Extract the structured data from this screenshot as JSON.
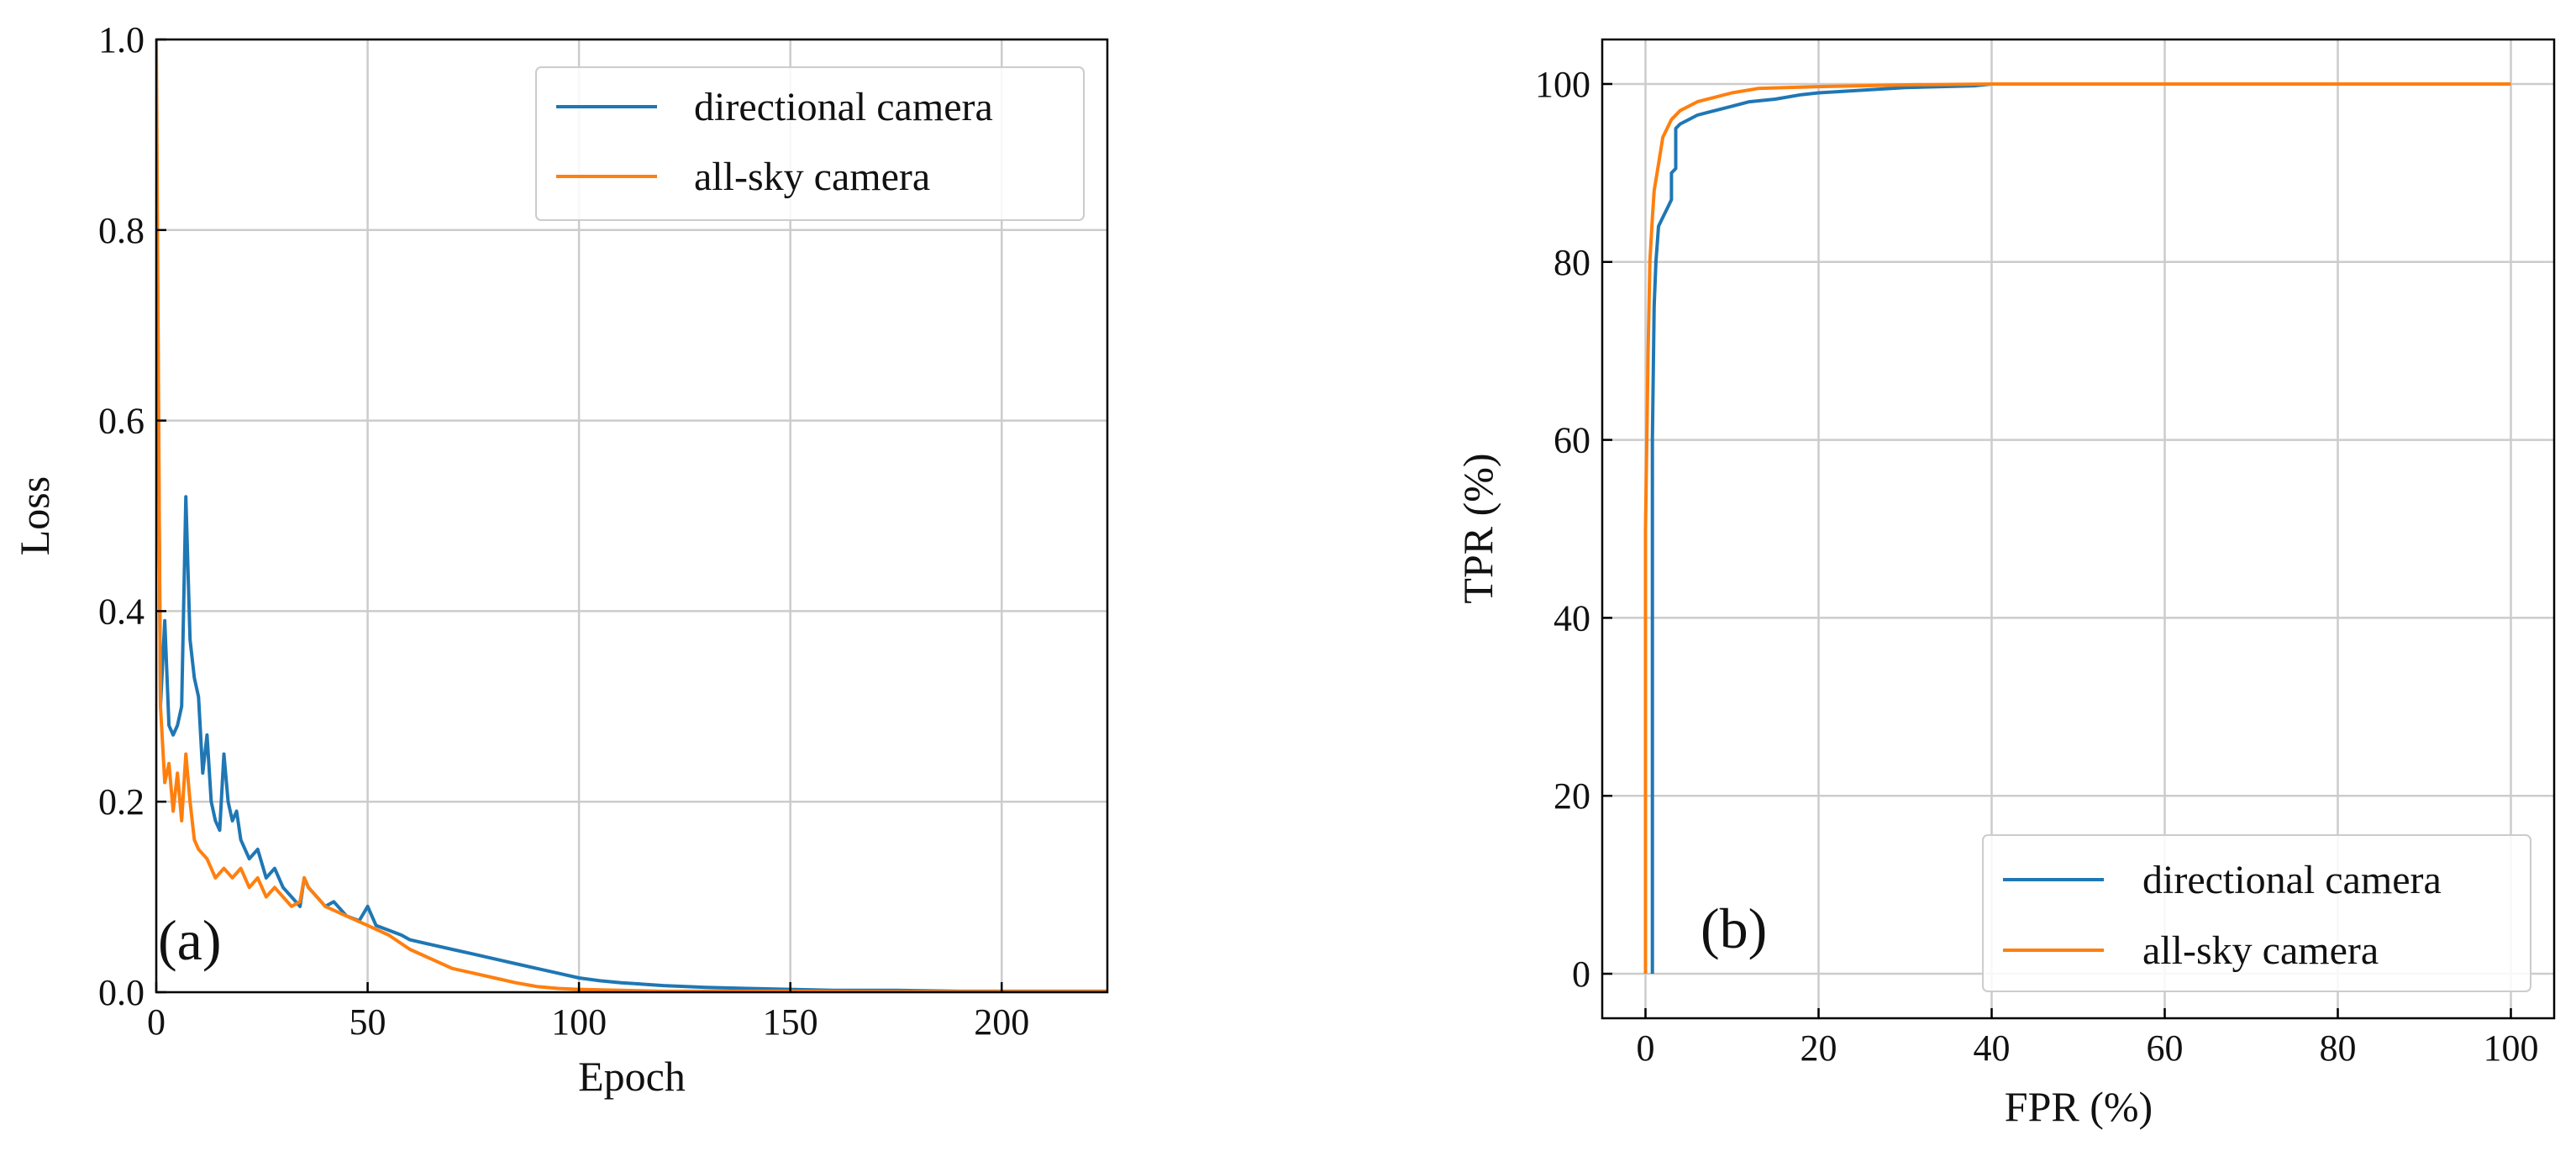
{
  "figure": {
    "colors": {
      "directional": "#1f77b4",
      "allsky": "#ff7f0e",
      "grid": "#cccccc",
      "axis": "#000000"
    }
  },
  "chart_data": [
    {
      "type": "line",
      "panel_label": "(a)",
      "xlabel": "Epoch",
      "ylabel": "Loss",
      "xlim": [
        0,
        225
      ],
      "ylim": [
        0,
        1.0
      ],
      "xticks": [
        0,
        50,
        100,
        150,
        200
      ],
      "xtick_labels": [
        "0",
        "50",
        "100",
        "150",
        "200"
      ],
      "yticks": [
        0,
        0.2,
        0.4,
        0.6,
        0.8,
        1.0
      ],
      "ytick_labels": [
        "0.0",
        "0.2",
        "0.4",
        "0.6",
        "0.8",
        "1.0"
      ],
      "grid": true,
      "legend": {
        "position": "top-right",
        "entries": [
          "directional camera",
          "all-sky camera"
        ]
      },
      "series": [
        {
          "name": "directional camera",
          "color": "#1f77b4",
          "x": [
            0,
            1,
            2,
            3,
            4,
            5,
            6,
            7,
            8,
            9,
            10,
            11,
            12,
            13,
            14,
            15,
            16,
            17,
            18,
            19,
            20,
            22,
            24,
            26,
            28,
            30,
            32,
            34,
            35,
            36,
            38,
            40,
            42,
            45,
            48,
            50,
            52,
            55,
            58,
            60,
            65,
            70,
            75,
            80,
            85,
            90,
            95,
            100,
            105,
            110,
            120,
            130,
            140,
            150,
            160,
            175,
            190,
            200,
            210,
            225
          ],
          "y": [
            0.95,
            0.3,
            0.39,
            0.28,
            0.27,
            0.28,
            0.3,
            0.52,
            0.37,
            0.33,
            0.31,
            0.23,
            0.27,
            0.2,
            0.18,
            0.17,
            0.25,
            0.2,
            0.18,
            0.19,
            0.16,
            0.14,
            0.15,
            0.12,
            0.13,
            0.11,
            0.1,
            0.09,
            0.12,
            0.11,
            0.1,
            0.09,
            0.095,
            0.08,
            0.075,
            0.09,
            0.07,
            0.065,
            0.06,
            0.055,
            0.05,
            0.045,
            0.04,
            0.035,
            0.03,
            0.025,
            0.02,
            0.015,
            0.012,
            0.01,
            0.007,
            0.005,
            0.004,
            0.003,
            0.002,
            0.002,
            0.001,
            0.001,
            0.001,
            0.001
          ]
        },
        {
          "name": "all-sky camera",
          "color": "#ff7f0e",
          "x": [
            0,
            1,
            2,
            3,
            4,
            5,
            6,
            7,
            8,
            9,
            10,
            12,
            14,
            16,
            18,
            20,
            22,
            24,
            26,
            28,
            30,
            32,
            34,
            35,
            36,
            38,
            40,
            45,
            50,
            55,
            60,
            65,
            70,
            75,
            80,
            85,
            90,
            95,
            100,
            110,
            120,
            130,
            150,
            175,
            200,
            225
          ],
          "y": [
            1.0,
            0.3,
            0.22,
            0.24,
            0.19,
            0.23,
            0.18,
            0.25,
            0.2,
            0.16,
            0.15,
            0.14,
            0.12,
            0.13,
            0.12,
            0.13,
            0.11,
            0.12,
            0.1,
            0.11,
            0.1,
            0.09,
            0.095,
            0.12,
            0.11,
            0.1,
            0.09,
            0.08,
            0.07,
            0.06,
            0.045,
            0.035,
            0.025,
            0.02,
            0.015,
            0.01,
            0.006,
            0.004,
            0.003,
            0.002,
            0.001,
            0.001,
            0.001,
            0.0005,
            0.0005,
            0.0005
          ]
        }
      ]
    },
    {
      "type": "line",
      "panel_label": "(b)",
      "xlabel": "FPR (%)",
      "ylabel": "TPR (%)",
      "xlim": [
        -5,
        105
      ],
      "ylim": [
        -5,
        105
      ],
      "xticks": [
        0,
        20,
        40,
        60,
        80,
        100
      ],
      "xtick_labels": [
        "0",
        "20",
        "40",
        "60",
        "80",
        "100"
      ],
      "yticks": [
        0,
        20,
        40,
        60,
        80,
        100
      ],
      "ytick_labels": [
        "0",
        "20",
        "40",
        "60",
        "80",
        "100"
      ],
      "grid": true,
      "legend": {
        "position": "bottom-right",
        "entries": [
          "directional camera",
          "all-sky camera"
        ]
      },
      "series": [
        {
          "name": "directional camera",
          "color": "#1f77b4",
          "x": [
            0.8,
            0.8,
            1.0,
            1.2,
            1.5,
            2.0,
            2.5,
            3.0,
            3.0,
            3.5,
            3.5,
            4.0,
            6.0,
            8.0,
            10.0,
            12.0,
            15.0,
            18.0,
            20.0,
            25.0,
            30.0,
            38.0,
            40.0,
            60.0,
            80.0,
            100.0
          ],
          "y": [
            0.0,
            60.0,
            75.0,
            80.0,
            84.0,
            85.0,
            86.0,
            87.0,
            90.0,
            90.5,
            95.0,
            95.5,
            96.5,
            97.0,
            97.5,
            98.0,
            98.3,
            98.8,
            99.0,
            99.3,
            99.6,
            99.8,
            100.0,
            100.0,
            100.0,
            100.0
          ]
        },
        {
          "name": "all-sky camera",
          "color": "#ff7f0e",
          "x": [
            0.0,
            0.0,
            0.3,
            0.5,
            0.8,
            1.0,
            1.5,
            2.0,
            3.0,
            4.0,
            6.0,
            8.0,
            10.0,
            13.0,
            20.0,
            30.0,
            40.0,
            60.0,
            80.0,
            100.0
          ],
          "y": [
            0.0,
            50.0,
            70.0,
            80.0,
            85.0,
            88.0,
            91.0,
            94.0,
            96.0,
            97.0,
            98.0,
            98.5,
            99.0,
            99.5,
            99.7,
            99.9,
            100.0,
            100.0,
            100.0,
            100.0
          ]
        }
      ]
    }
  ]
}
